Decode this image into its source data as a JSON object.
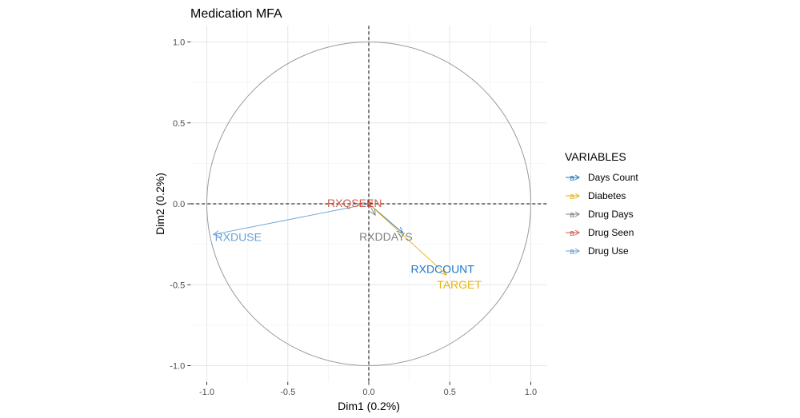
{
  "chart_data": {
    "type": "scatter",
    "subtype": "correlation-circle",
    "title": "Medication MFA",
    "xlabel": "Dim1 (0.2%)",
    "ylabel": "Dim2 (0.2%)",
    "xlim": [
      -1.1,
      1.1
    ],
    "ylim": [
      -1.1,
      1.1
    ],
    "x_ticks": [
      -1.0,
      -0.5,
      0.0,
      0.5,
      1.0
    ],
    "x_tick_labels": [
      "-1.0",
      "-0.5",
      "0.0",
      "0.5",
      "1.0"
    ],
    "y_ticks": [
      1.0,
      0.5,
      0.0,
      -0.5,
      -1.0
    ],
    "y_tick_labels": [
      "1.0",
      "0.5",
      "0.0",
      "-0.5",
      "-1.0"
    ],
    "grid": true,
    "unit_circle": true,
    "reference_lines": {
      "x": 0,
      "y": 0,
      "style": "dashed"
    },
    "legend": {
      "title": "VARIABLES",
      "position": "right",
      "entries": [
        {
          "label": "Days Count",
          "color": "#1f78c1"
        },
        {
          "label": "Diabetes",
          "color": "#e6b40c"
        },
        {
          "label": "Drug Days",
          "color": "#808080"
        },
        {
          "label": "Drug Seen",
          "color": "#cd5c4a"
        },
        {
          "label": "Drug Use",
          "color": "#6aa0d6"
        }
      ]
    },
    "series": [
      {
        "name": "Days Count",
        "label": "RXDCOUNT",
        "x": 0.21,
        "y": -0.18,
        "color": "#1f78c1"
      },
      {
        "name": "Diabetes",
        "label": "TARGET",
        "x": 0.48,
        "y": -0.44,
        "color": "#e6b40c"
      },
      {
        "name": "Drug Days",
        "label": "RXDDAYS",
        "x": 0.04,
        "y": -0.07,
        "color": "#808080"
      },
      {
        "name": "Drug Seen",
        "label": "RXQSEEN",
        "x": -0.01,
        "y": 0.0,
        "color": "#cd5c4a"
      },
      {
        "name": "Drug Use",
        "label": "RXDUSE",
        "x": -0.96,
        "y": -0.19,
        "color": "#6aa0d6"
      }
    ]
  }
}
